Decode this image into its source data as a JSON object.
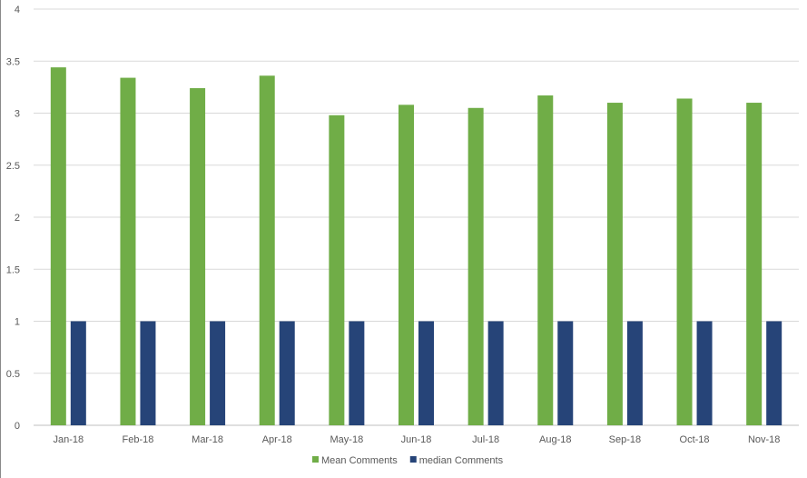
{
  "chart_data": {
    "type": "bar",
    "categories": [
      "Jan-18",
      "Feb-18",
      "Mar-18",
      "Apr-18",
      "May-18",
      "Jun-18",
      "Jul-18",
      "Aug-18",
      "Sep-18",
      "Oct-18",
      "Nov-18"
    ],
    "series": [
      {
        "name": "Mean Comments",
        "values": [
          3.44,
          3.34,
          3.24,
          3.36,
          2.98,
          3.08,
          3.05,
          3.17,
          3.1,
          3.14,
          3.1
        ],
        "color": "#70ad47"
      },
      {
        "name": "median Comments",
        "values": [
          1,
          1,
          1,
          1,
          1,
          1,
          1,
          1,
          1,
          1,
          1
        ],
        "color": "#264478"
      }
    ],
    "ylim": [
      0,
      4
    ],
    "yticks": [
      "0",
      "0.5",
      "1",
      "1.5",
      "2",
      "2.5",
      "3",
      "3.5",
      "4"
    ],
    "grid": true,
    "legend_position": "bottom"
  }
}
